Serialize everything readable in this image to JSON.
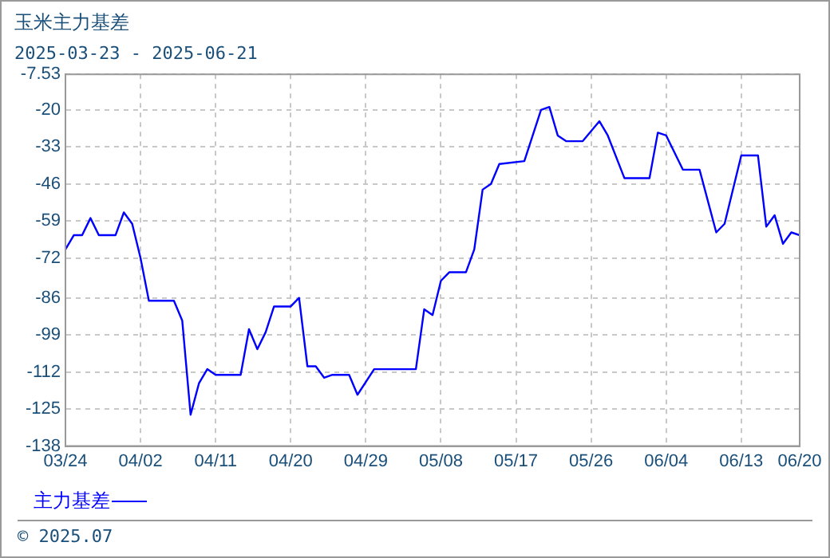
{
  "chart_data": {
    "type": "line",
    "title": "玉米主力基差",
    "subtitle": "2025-03-23 - 2025-06-21",
    "x": [
      "2025-03-24",
      "2025-03-25",
      "2025-03-26",
      "2025-03-27",
      "2025-03-28",
      "2025-03-30",
      "2025-03-31",
      "2025-04-01",
      "2025-04-02",
      "2025-04-03",
      "2025-04-06",
      "2025-04-07",
      "2025-04-08",
      "2025-04-09",
      "2025-04-10",
      "2025-04-11",
      "2025-04-14",
      "2025-04-15",
      "2025-04-16",
      "2025-04-17",
      "2025-04-18",
      "2025-04-20",
      "2025-04-21",
      "2025-04-22",
      "2025-04-23",
      "2025-04-24",
      "2025-04-25",
      "2025-04-27",
      "2025-04-28",
      "2025-04-30",
      "2025-05-05",
      "2025-05-06",
      "2025-05-07",
      "2025-05-08",
      "2025-05-09",
      "2025-05-11",
      "2025-05-12",
      "2025-05-13",
      "2025-05-14",
      "2025-05-15",
      "2025-05-18",
      "2025-05-20",
      "2025-05-21",
      "2025-05-22",
      "2025-05-23",
      "2025-05-25",
      "2025-05-27",
      "2025-05-28",
      "2025-05-30",
      "2025-06-02",
      "2025-06-03",
      "2025-06-04",
      "2025-06-06",
      "2025-06-08",
      "2025-06-10",
      "2025-06-11",
      "2025-06-13",
      "2025-06-15",
      "2025-06-16",
      "2025-06-17",
      "2025-06-18",
      "2025-06-19",
      "2025-06-20"
    ],
    "series": [
      {
        "name": "主力基差",
        "color": "#0000ff",
        "values": [
          -69,
          -64,
          -64,
          -58,
          -64,
          -64,
          -56,
          -60,
          -72,
          -87,
          -87,
          -94,
          -127,
          -116,
          -111,
          -113,
          -113,
          -97,
          -104,
          -98,
          -89,
          -89,
          -86,
          -110,
          -110,
          -114,
          -113,
          -113,
          -120,
          -111,
          -111,
          -90,
          -92,
          -80,
          -77,
          -77,
          -69,
          -48,
          -46,
          -39,
          -38,
          -20,
          -19,
          -29,
          -31,
          -31,
          -24,
          -29,
          -44,
          -44,
          -28,
          -29,
          -41,
          -41,
          -63,
          -60,
          -36,
          -36,
          -61,
          -57,
          -67,
          -63,
          -64
        ]
      }
    ],
    "xlim": [
      "2025-03-24",
      "2025-06-20"
    ],
    "xticks": [
      {
        "value": "2025-03-24",
        "label": "03/24"
      },
      {
        "value": "2025-04-02",
        "label": "04/02"
      },
      {
        "value": "2025-04-11",
        "label": "04/11"
      },
      {
        "value": "2025-04-20",
        "label": "04/20"
      },
      {
        "value": "2025-04-29",
        "label": "04/29"
      },
      {
        "value": "2025-05-08",
        "label": "05/08"
      },
      {
        "value": "2025-05-17",
        "label": "05/17"
      },
      {
        "value": "2025-05-26",
        "label": "05/26"
      },
      {
        "value": "2025-06-04",
        "label": "06/04"
      },
      {
        "value": "2025-06-13",
        "label": "06/13"
      },
      {
        "value": "2025-06-20",
        "label": "06/20"
      }
    ],
    "ylim": [
      -138,
      -7.53
    ],
    "yticks": [
      -138,
      -125,
      -112,
      -99,
      -86,
      -72,
      -59,
      -46,
      -33,
      -20,
      -7.53
    ],
    "grid": true,
    "legend": "bottom left",
    "marker": "none",
    "line_style": "solid",
    "annotations": [
      "© 2025.07"
    ]
  }
}
